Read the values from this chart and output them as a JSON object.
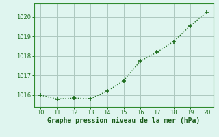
{
  "x": [
    10,
    11,
    12,
    13,
    14,
    15,
    16,
    17,
    18,
    19,
    20
  ],
  "y": [
    1016.0,
    1015.8,
    1015.85,
    1015.82,
    1016.2,
    1016.75,
    1017.75,
    1018.2,
    1018.75,
    1019.55,
    1020.25
  ],
  "line_color": "#1e6e1e",
  "marker": "+",
  "marker_size": 5,
  "marker_linewidth": 1.2,
  "linewidth": 1.0,
  "linestyle": ":",
  "xlabel": "Graphe pression niveau de la mer (hPa)",
  "xlabel_color": "#1a5c1a",
  "xlabel_fontsize": 7.0,
  "background_color": "#dff5ef",
  "grid_color": "#adc8bf",
  "tick_color": "#1e6e1e",
  "ylim": [
    1015.4,
    1020.7
  ],
  "xlim": [
    9.6,
    20.4
  ],
  "yticks": [
    1016,
    1017,
    1018,
    1019,
    1020
  ],
  "xticks": [
    10,
    11,
    12,
    13,
    14,
    15,
    16,
    17,
    18,
    19,
    20
  ],
  "tick_fontsize": 6.0,
  "spine_color": "#2e8b2e"
}
